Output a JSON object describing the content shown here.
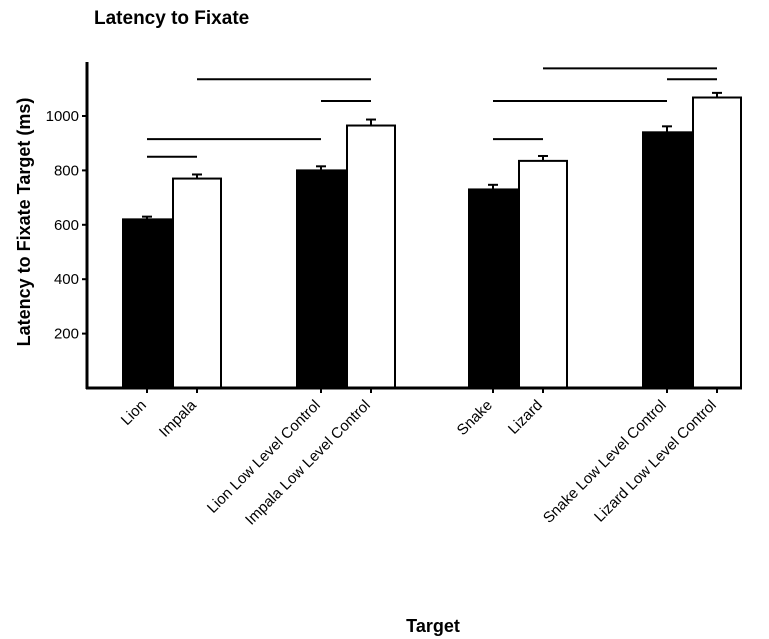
{
  "title": "Latency to Fixate",
  "chart_data": {
    "type": "bar",
    "title": "Latency to Fixate",
    "xlabel": "Target",
    "ylabel": "Latency to Fixate Target (ms)",
    "ylim": [
      0,
      1150
    ],
    "yticks": [
      200,
      400,
      600,
      800,
      1000
    ],
    "grid": false,
    "legend": "none",
    "categories": [
      "Lion",
      "Impala",
      "Lion Low Level Control",
      "Impala Low Level Control",
      "Snake",
      "Lizard",
      "Snake Low Level Control",
      "Lizard Low Level Control"
    ],
    "values": [
      620,
      770,
      800,
      965,
      730,
      835,
      940,
      1068
    ],
    "errors": [
      10,
      15,
      15,
      22,
      17,
      18,
      22,
      17
    ],
    "fills": [
      "#000000",
      "#ffffff",
      "#000000",
      "#ffffff",
      "#000000",
      "#ffffff",
      "#000000",
      "#ffffff"
    ],
    "significance_lines": [
      {
        "from": "Lion",
        "to": "Impala",
        "level": 850
      },
      {
        "from": "Lion",
        "to": "Lion Low Level Control",
        "level": 915
      },
      {
        "from": "Lion Low Level Control",
        "to": "Impala Low Level Control",
        "level": 1055
      },
      {
        "from": "Impala",
        "to": "Impala Low Level Control",
        "level": 1135
      },
      {
        "from": "Snake",
        "to": "Lizard",
        "level": 915
      },
      {
        "from": "Snake",
        "to": "Snake Low Level Control",
        "level": 1055
      },
      {
        "from": "Snake Low Level Control",
        "to": "Lizard Low Level Control",
        "level": 1135
      },
      {
        "from": "Lizard",
        "to": "Lizard Low Level Control",
        "level": 1175
      }
    ]
  }
}
